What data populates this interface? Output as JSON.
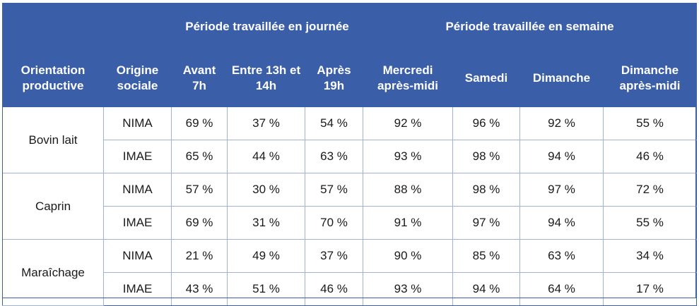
{
  "header": {
    "group_day": "Période travaillée en journée",
    "group_week": "Période travaillée en semaine",
    "columns": [
      "Orientation productive",
      "Origine sociale",
      "Avant 7h",
      "Entre 13h et 14h",
      "Après 19h",
      "Mercredi après-midi",
      "Samedi",
      "Dimanche",
      "Dimanche après-midi"
    ]
  },
  "groups": [
    {
      "orientation": "Bovin lait",
      "rows": [
        [
          "NIMA",
          "69 %",
          "37 %",
          "54 %",
          "92 %",
          "96 %",
          "92 %",
          "55 %"
        ],
        [
          "IMAE",
          "65 %",
          "44 %",
          "63 %",
          "93 %",
          "98 %",
          "94 %",
          "46 %"
        ]
      ]
    },
    {
      "orientation": "Caprin",
      "rows": [
        [
          "NIMA",
          "57 %",
          "30 %",
          "57 %",
          "88 %",
          "98 %",
          "97 %",
          "72 %"
        ],
        [
          "IMAE",
          "69 %",
          "31 %",
          "70 %",
          "91 %",
          "97 %",
          "94 %",
          "55 %"
        ]
      ]
    },
    {
      "orientation": "Maraîchage",
      "rows": [
        [
          "NIMA",
          "21 %",
          "49 %",
          "37 %",
          "90 %",
          "85 %",
          "63 %",
          "34 %"
        ],
        [
          "IMAE",
          "43 %",
          "51 %",
          "46 %",
          "93 %",
          "94 %",
          "64 %",
          "17 %"
        ]
      ]
    }
  ]
}
